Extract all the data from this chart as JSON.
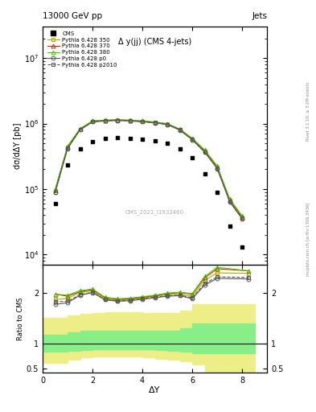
{
  "title_top": "13000 GeV pp",
  "title_right": "Jets",
  "plot_title": "Δ y(jj) (CMS 4-jets)",
  "watermark": "CMS_2021_I1932460",
  "rivet_text": "Rivet 3.1.10, ≥ 3.2M events",
  "mcplots_text": "mcplots.cern.ch [arXiv:1306.3436]",
  "xlabel": "ΔY",
  "ylabel_main": "dσ/dΔY [pb]",
  "ylabel_ratio": "Ratio to CMS",
  "ylim_main_lo": 7000,
  "ylim_main_hi": 30000000,
  "ylim_ratio_lo": 0.42,
  "ylim_ratio_hi": 2.55,
  "cms_x": [
    0.5,
    1.0,
    1.5,
    2.0,
    2.5,
    3.0,
    3.5,
    4.0,
    4.5,
    5.0,
    5.5,
    6.0,
    6.5,
    7.0,
    7.5,
    8.0,
    8.5
  ],
  "cms_y": [
    60000,
    230000,
    410000,
    530000,
    590000,
    610000,
    595000,
    570000,
    540000,
    500000,
    410000,
    300000,
    170000,
    90000,
    27000,
    13000,
    0
  ],
  "py350_x": [
    0.5,
    1.0,
    1.5,
    2.0,
    2.5,
    3.0,
    3.5,
    4.0,
    4.5,
    5.0,
    5.5,
    6.0,
    6.5,
    7.0,
    7.5,
    8.0,
    8.25
  ],
  "py350_y": [
    95000,
    435000,
    820000,
    1080000,
    1110000,
    1130000,
    1110000,
    1080000,
    1040000,
    980000,
    810000,
    580000,
    380000,
    215000,
    68000,
    37000,
    0
  ],
  "py370_x": [
    0.5,
    1.0,
    1.5,
    2.0,
    2.5,
    3.0,
    3.5,
    4.0,
    4.5,
    5.0,
    5.5,
    6.0,
    6.5,
    7.0,
    7.5,
    8.0,
    8.25
  ],
  "py370_y": [
    97000,
    445000,
    830000,
    1090000,
    1120000,
    1140000,
    1120000,
    1090000,
    1050000,
    990000,
    820000,
    590000,
    390000,
    222000,
    70000,
    38000,
    0
  ],
  "py380_x": [
    0.5,
    1.0,
    1.5,
    2.0,
    2.5,
    3.0,
    3.5,
    4.0,
    4.5,
    5.0,
    5.5,
    6.0,
    6.5,
    7.0,
    7.5,
    8.0,
    8.25
  ],
  "py380_y": [
    98000,
    450000,
    835000,
    1095000,
    1125000,
    1145000,
    1125000,
    1095000,
    1055000,
    995000,
    825000,
    595000,
    395000,
    225000,
    71000,
    39000,
    0
  ],
  "pyp0_x": [
    0.5,
    1.0,
    1.5,
    2.0,
    2.5,
    3.0,
    3.5,
    4.0,
    4.5,
    5.0,
    5.5,
    6.0,
    6.5,
    7.0,
    7.5,
    8.0,
    8.25
  ],
  "pyp0_y": [
    88000,
    415000,
    800000,
    1060000,
    1095000,
    1115000,
    1095000,
    1065000,
    1025000,
    965000,
    795000,
    565000,
    365000,
    205000,
    64000,
    35000,
    0
  ],
  "pyp2010_x": [
    0.5,
    1.0,
    1.5,
    2.0,
    2.5,
    3.0,
    3.5,
    4.0,
    4.5,
    5.0,
    5.5,
    6.0,
    6.5,
    7.0,
    7.5,
    8.0,
    8.25
  ],
  "pyp2010_y": [
    90000,
    420000,
    805000,
    1065000,
    1100000,
    1120000,
    1100000,
    1070000,
    1030000,
    970000,
    800000,
    570000,
    370000,
    208000,
    65000,
    36000,
    0
  ],
  "ratio_x": [
    0.5,
    1.0,
    1.5,
    2.0,
    2.5,
    3.0,
    3.5,
    4.0,
    4.5,
    5.0,
    5.5,
    6.0,
    6.5,
    7.0,
    8.25
  ],
  "ratio_py350": [
    1.86,
    1.89,
    2.0,
    2.04,
    1.88,
    1.85,
    1.87,
    1.895,
    1.93,
    1.96,
    1.97,
    1.93,
    2.24,
    2.39,
    2.38
  ],
  "ratio_py370": [
    1.97,
    1.93,
    2.02,
    2.06,
    1.9,
    1.87,
    1.88,
    1.91,
    1.94,
    1.98,
    2.0,
    1.97,
    2.29,
    2.47,
    2.43
  ],
  "ratio_py380": [
    1.97,
    1.95,
    2.04,
    2.07,
    1.91,
    1.88,
    1.89,
    1.92,
    1.95,
    1.99,
    2.01,
    1.98,
    2.32,
    2.5,
    2.43
  ],
  "ratio_pyp0": [
    1.77,
    1.8,
    1.95,
    2.0,
    1.86,
    1.83,
    1.84,
    1.87,
    1.9,
    1.93,
    1.94,
    1.88,
    2.15,
    2.28,
    2.27
  ],
  "ratio_pyp2010": [
    1.82,
    1.83,
    1.96,
    2.01,
    1.86,
    1.84,
    1.85,
    1.88,
    1.91,
    1.94,
    1.95,
    1.9,
    2.18,
    2.31,
    2.3
  ],
  "band_x": [
    0.0,
    0.5,
    1.0,
    1.5,
    2.0,
    2.5,
    3.0,
    3.5,
    4.0,
    4.5,
    5.0,
    5.5,
    6.0,
    6.5,
    7.0,
    8.5
  ],
  "band_green_lo": [
    0.83,
    0.83,
    0.85,
    0.87,
    0.88,
    0.88,
    0.88,
    0.88,
    0.88,
    0.87,
    0.85,
    0.83,
    0.8,
    0.8,
    0.8,
    0.8
  ],
  "band_green_hi": [
    1.17,
    1.17,
    1.22,
    1.25,
    1.25,
    1.25,
    1.25,
    1.25,
    1.25,
    1.25,
    1.25,
    1.3,
    1.4,
    1.4,
    1.4,
    1.4
  ],
  "band_yellow_lo": [
    0.62,
    0.62,
    0.68,
    0.72,
    0.74,
    0.74,
    0.74,
    0.74,
    0.72,
    0.7,
    0.68,
    0.65,
    0.58,
    0.42,
    0.42,
    0.42
  ],
  "band_yellow_hi": [
    1.5,
    1.5,
    1.55,
    1.58,
    1.6,
    1.62,
    1.62,
    1.62,
    1.6,
    1.6,
    1.6,
    1.65,
    1.78,
    1.78,
    1.78,
    1.78
  ],
  "color_py350": "#aaaa00",
  "color_py370": "#cc2200",
  "color_py380": "#44cc00",
  "color_pyp0": "#555555",
  "color_pyp2010": "#555555",
  "color_green_band": "#88ee88",
  "color_yellow_band": "#eeee88"
}
